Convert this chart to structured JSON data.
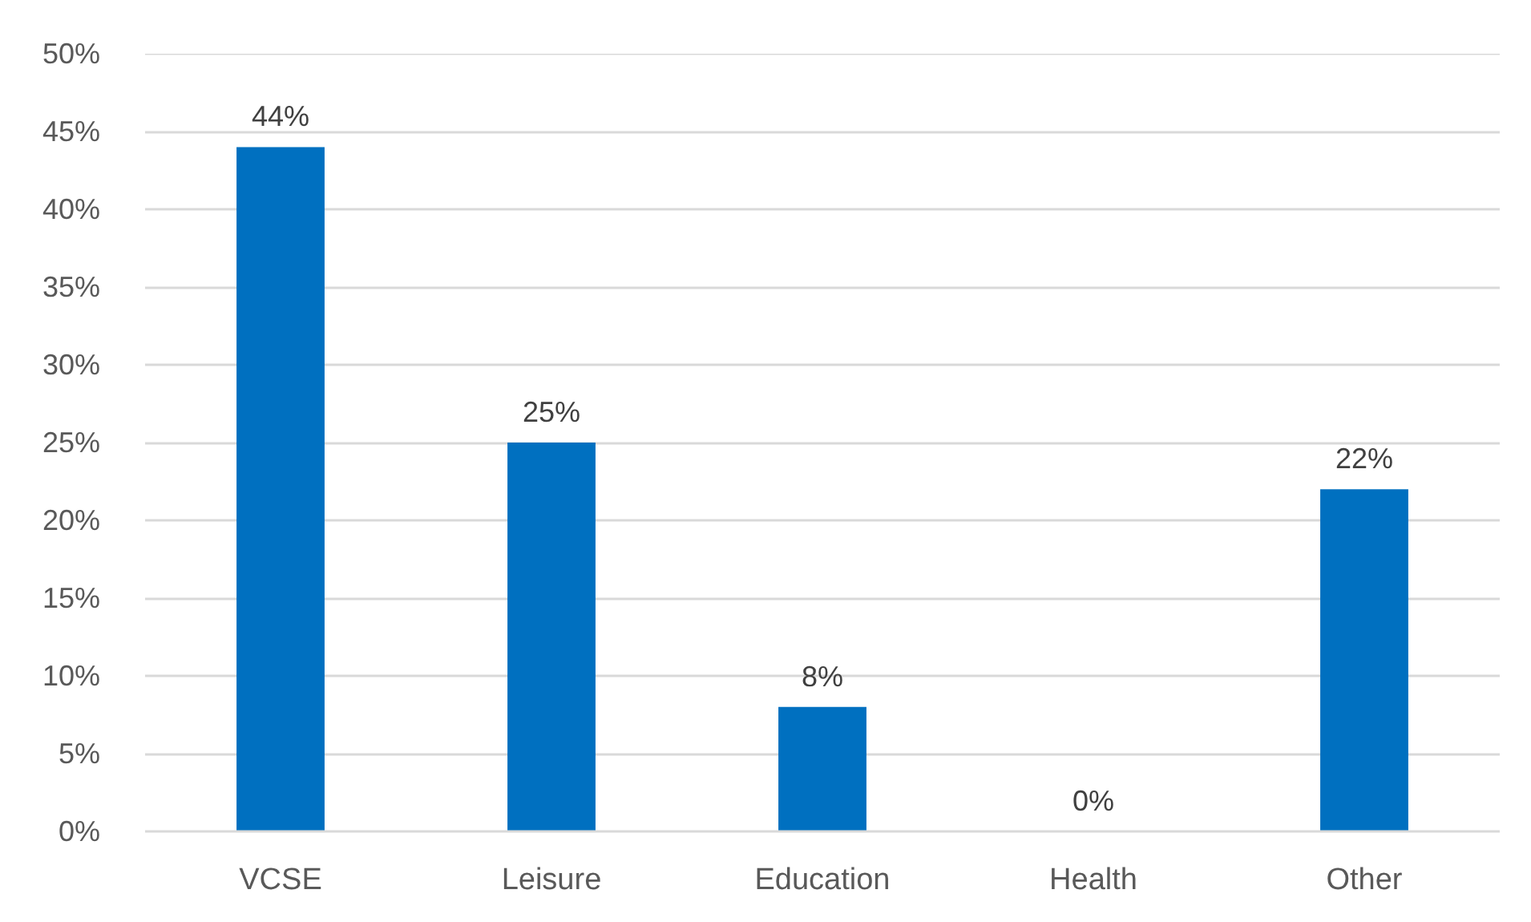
{
  "chart_data": {
    "type": "bar",
    "categories": [
      "VCSE",
      "Leisure",
      "Education",
      "Health",
      "Other"
    ],
    "values": [
      44,
      25,
      8,
      0,
      22
    ],
    "value_labels": [
      "44%",
      "25%",
      "8%",
      "0%",
      "22%"
    ],
    "color": "#0070c0",
    "ylim": [
      0,
      50
    ],
    "yticks": [
      {
        "value": 0,
        "label": "0%"
      },
      {
        "value": 5,
        "label": "5%"
      },
      {
        "value": 10,
        "label": "10%"
      },
      {
        "value": 15,
        "label": "15%"
      },
      {
        "value": 20,
        "label": "20%"
      },
      {
        "value": 25,
        "label": "25%"
      },
      {
        "value": 30,
        "label": "30%"
      },
      {
        "value": 35,
        "label": "35%"
      },
      {
        "value": 40,
        "label": "40%"
      },
      {
        "value": 45,
        "label": "45%"
      },
      {
        "value": 50,
        "label": "50%"
      }
    ],
    "grid": "y"
  }
}
